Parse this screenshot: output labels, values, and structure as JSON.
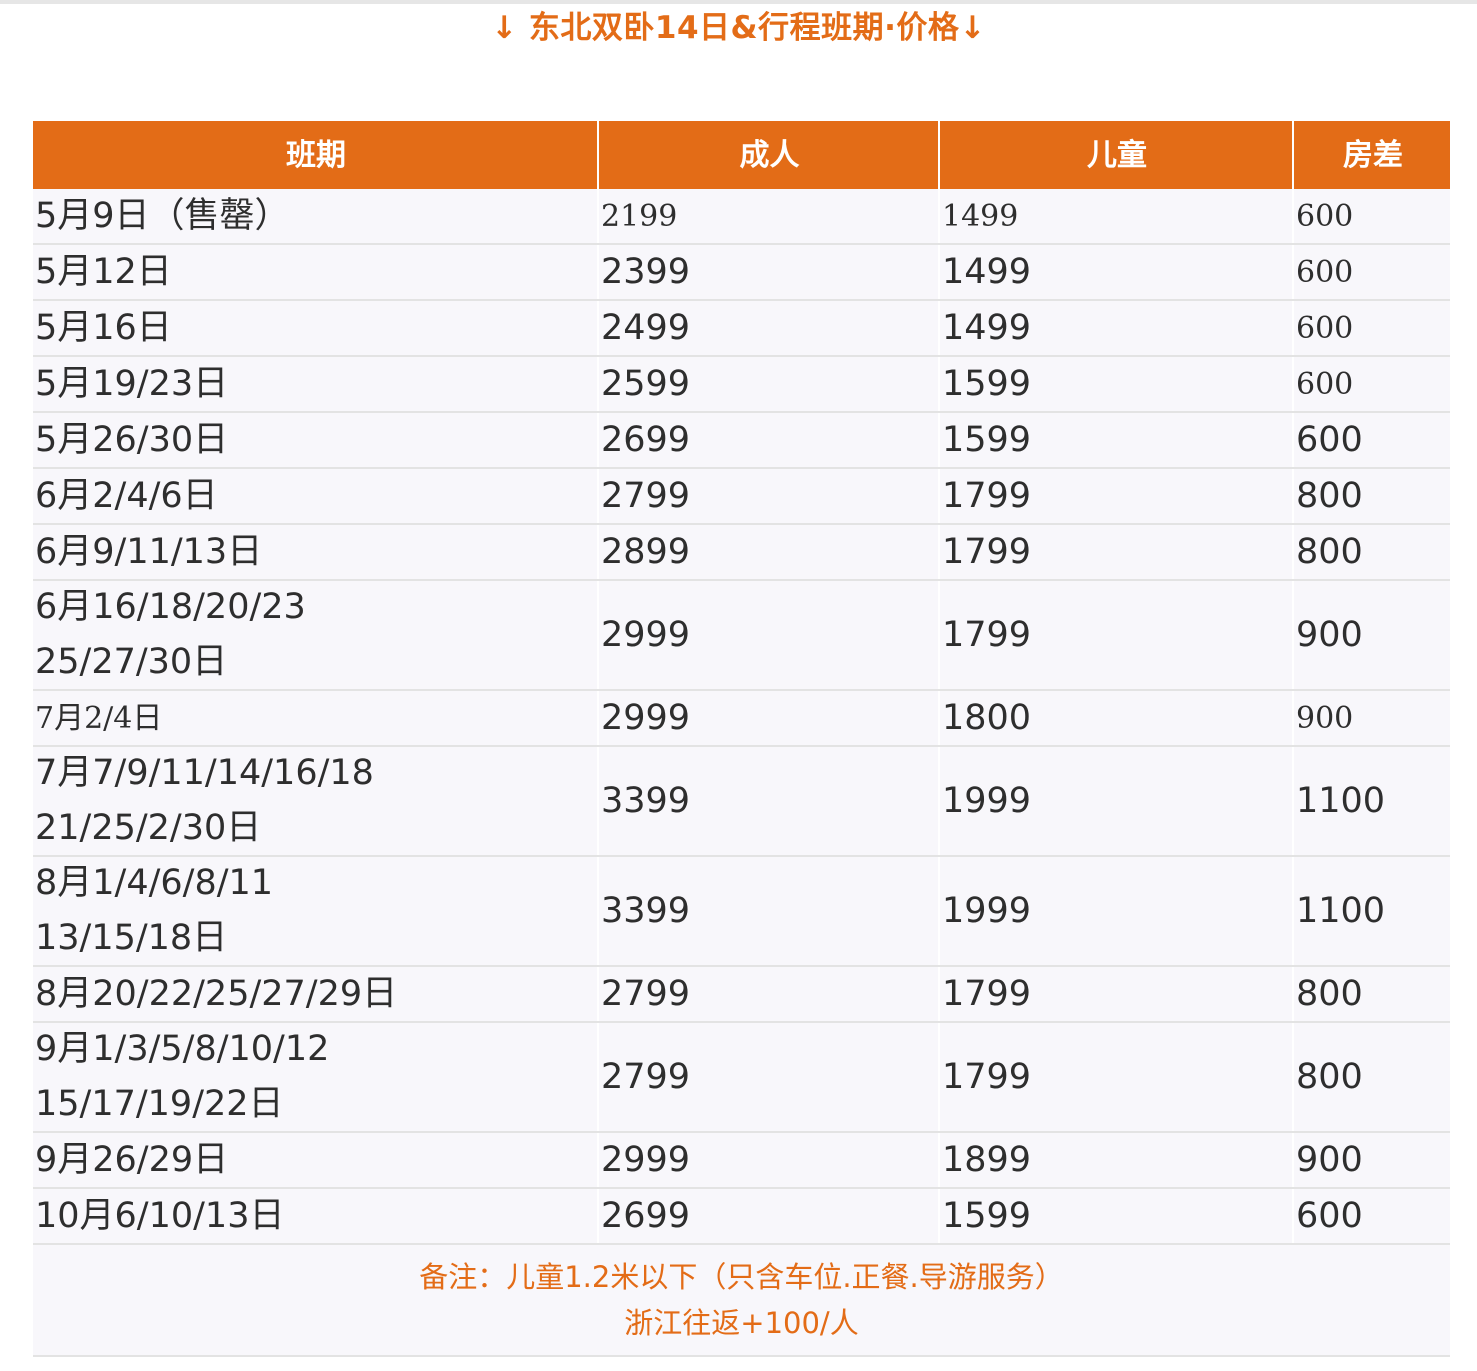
{
  "title": "↓ 东北双卧14日&行程班期·价格↓",
  "table": {
    "headers": [
      "班期",
      "成人",
      "儿童",
      "房差"
    ],
    "rows": [
      {
        "date": [
          "5月9日（售罄）"
        ],
        "adult": "2199",
        "child": "1499",
        "room": "600"
      },
      {
        "date": [
          "5月12日"
        ],
        "adult": "2399",
        "child": "1499",
        "room": "600"
      },
      {
        "date": [
          "5月16日"
        ],
        "adult": "2499",
        "child": "1499",
        "room": "600"
      },
      {
        "date": [
          "5月19/23日"
        ],
        "adult": "2599",
        "child": "1599",
        "room": "600"
      },
      {
        "date": [
          "5月26/30日"
        ],
        "adult": "2699",
        "child": "1599",
        "room": "600"
      },
      {
        "date": [
          "6月2/4/6日"
        ],
        "adult": "2799",
        "child": "1799",
        "room": "800"
      },
      {
        "date": [
          "6月9/11/13日"
        ],
        "adult": "2899",
        "child": "1799",
        "room": "800"
      },
      {
        "date": [
          "6月16/18/20/23",
          "25/27/30日"
        ],
        "adult": "2999",
        "child": "1799",
        "room": "900"
      },
      {
        "date": [
          "7月2/4日"
        ],
        "adult": "2999",
        "child": "1800",
        "room": "900"
      },
      {
        "date": [
          "7月7/9/11/14/16/18",
          "21/25/2/30日"
        ],
        "adult": "3399",
        "child": "1999",
        "room": "1100"
      },
      {
        "date": [
          "8月1/4/6/8/11",
          "13/15/18日"
        ],
        "adult": "3399",
        "child": "1999",
        "room": "1100"
      },
      {
        "date": [
          "8月20/22/25/27/29日"
        ],
        "adult": "2799",
        "child": "1799",
        "room": "800"
      },
      {
        "date": [
          "9月1/3/5/8/10/12",
          "15/17/19/22日"
        ],
        "adult": "2799",
        "child": "1799",
        "room": "800"
      },
      {
        "date": [
          "9月26/29日"
        ],
        "adult": "2999",
        "child": "1899",
        "room": "900"
      },
      {
        "date": [
          "10月6/10/13日"
        ],
        "adult": "2699",
        "child": "1599",
        "room": "600"
      }
    ],
    "note_lines": [
      "备注：儿童1.2米以下（只含车位.正餐.导游服务）",
      "浙江往返+100/人"
    ]
  }
}
